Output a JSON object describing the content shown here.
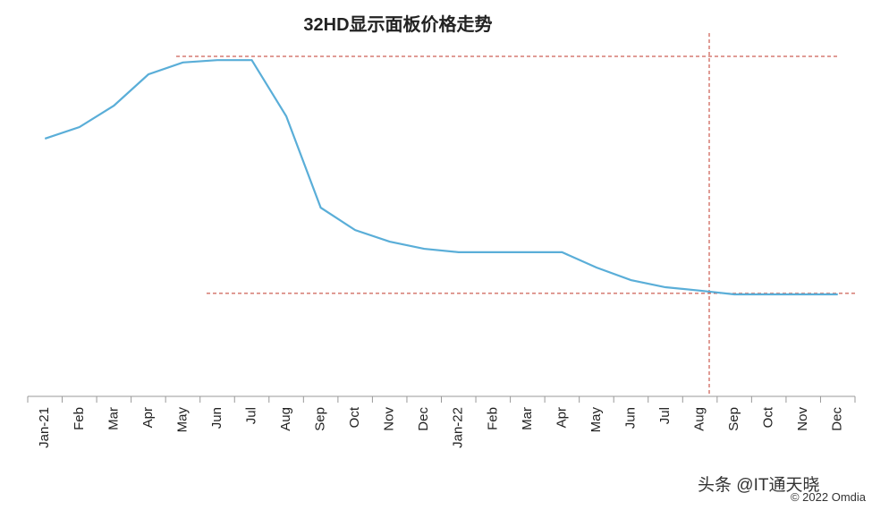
{
  "chart_data": {
    "type": "line",
    "title": "32HD显示面板价格走势",
    "categories": [
      "Jan-21",
      "Feb",
      "Mar",
      "Apr",
      "May",
      "Jun",
      "Jul",
      "Aug",
      "Sep",
      "Oct",
      "Nov",
      "Dec",
      "Jan-22",
      "Feb",
      "Mar",
      "Apr",
      "May",
      "Jun",
      "Jul",
      "Aug",
      "Sep",
      "Oct",
      "Nov",
      "Dec"
    ],
    "series": [
      {
        "color": "#5aaed8",
        "values": [
          75.8,
          79.2,
          85.5,
          94.7,
          98.2,
          98.9,
          98.9,
          82.4,
          55.5,
          48.9,
          45.5,
          43.4,
          42.4,
          42.4,
          42.4,
          42.4,
          37.9,
          34.2,
          32.1,
          31.1,
          30.0,
          30.0,
          30.0,
          30.0
        ]
      }
    ],
    "ylim": [
      0,
      100
    ],
    "reference_lines": [
      100,
      30.3
    ],
    "reference_color": "#c0392b",
    "watermark": "头条 @IT通天晓",
    "credit": "© 2022 Omdia"
  }
}
